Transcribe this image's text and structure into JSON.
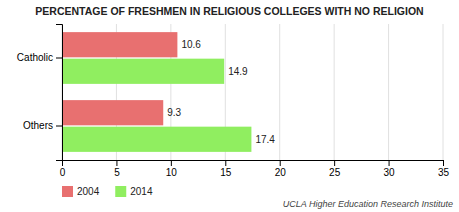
{
  "chart_data": {
    "type": "bar",
    "orientation": "horizontal",
    "title": "PERCENTAGE OF FRESHMEN IN RELIGIOUS COLLEGES WITH NO RELIGION",
    "categories": [
      "Others",
      "Catholic"
    ],
    "series": [
      {
        "name": "2004",
        "color": "#E87070",
        "values": [
          9.3,
          10.6
        ]
      },
      {
        "name": "2014",
        "color": "#90EE60",
        "values": [
          17.4,
          14.9
        ]
      }
    ],
    "xlim": [
      0,
      35
    ],
    "xticks": [
      0,
      5,
      10,
      15,
      20,
      25,
      30,
      35
    ],
    "grid": true,
    "data_labels": true,
    "legend": "bottom",
    "annotations": [
      "UCLA Higher Education Research Institute"
    ]
  }
}
